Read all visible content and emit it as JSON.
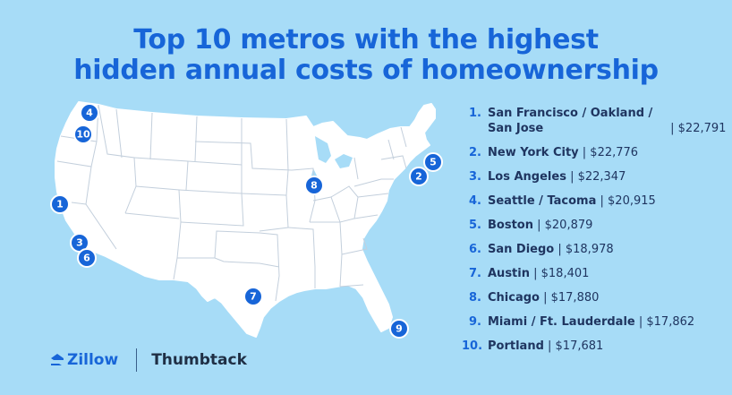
{
  "title": {
    "line1": "Top 10 metros with the highest",
    "line2": "hidden annual costs of homeownership"
  },
  "metros": [
    {
      "rank": "1.",
      "name": "San Francisco / Oakland / San Jose",
      "value": "| $22,791"
    },
    {
      "rank": "2.",
      "name": "New York City",
      "value": "| $22,776"
    },
    {
      "rank": "3.",
      "name": "Los Angeles",
      "value": "| $22,347"
    },
    {
      "rank": "4.",
      "name": "Seattle / Tacoma",
      "value": "| $20,915"
    },
    {
      "rank": "5.",
      "name": "Boston",
      "value": "| $20,879"
    },
    {
      "rank": "6.",
      "name": "San Diego",
      "value": "| $18,978"
    },
    {
      "rank": "7.",
      "name": "Austin",
      "value": "| $18,401"
    },
    {
      "rank": "8.",
      "name": "Chicago",
      "value": "| $17,880"
    },
    {
      "rank": "9.",
      "name": "Miami / Ft. Lauderdale",
      "value": "| $17,862"
    },
    {
      "rank": "10.",
      "name": "Portland",
      "value": "| $17,681"
    }
  ],
  "markers": [
    "1",
    "2",
    "3",
    "4",
    "5",
    "6",
    "7",
    "8",
    "9",
    "10"
  ],
  "logos": {
    "zillow": "Zillow",
    "thumbtack": "Thumbtack"
  },
  "colors": {
    "background": "#a7dcf7",
    "accent": "#1765d8",
    "text": "#1f3560",
    "map_fill": "#ffffff",
    "map_border": "#b9c6d6"
  }
}
